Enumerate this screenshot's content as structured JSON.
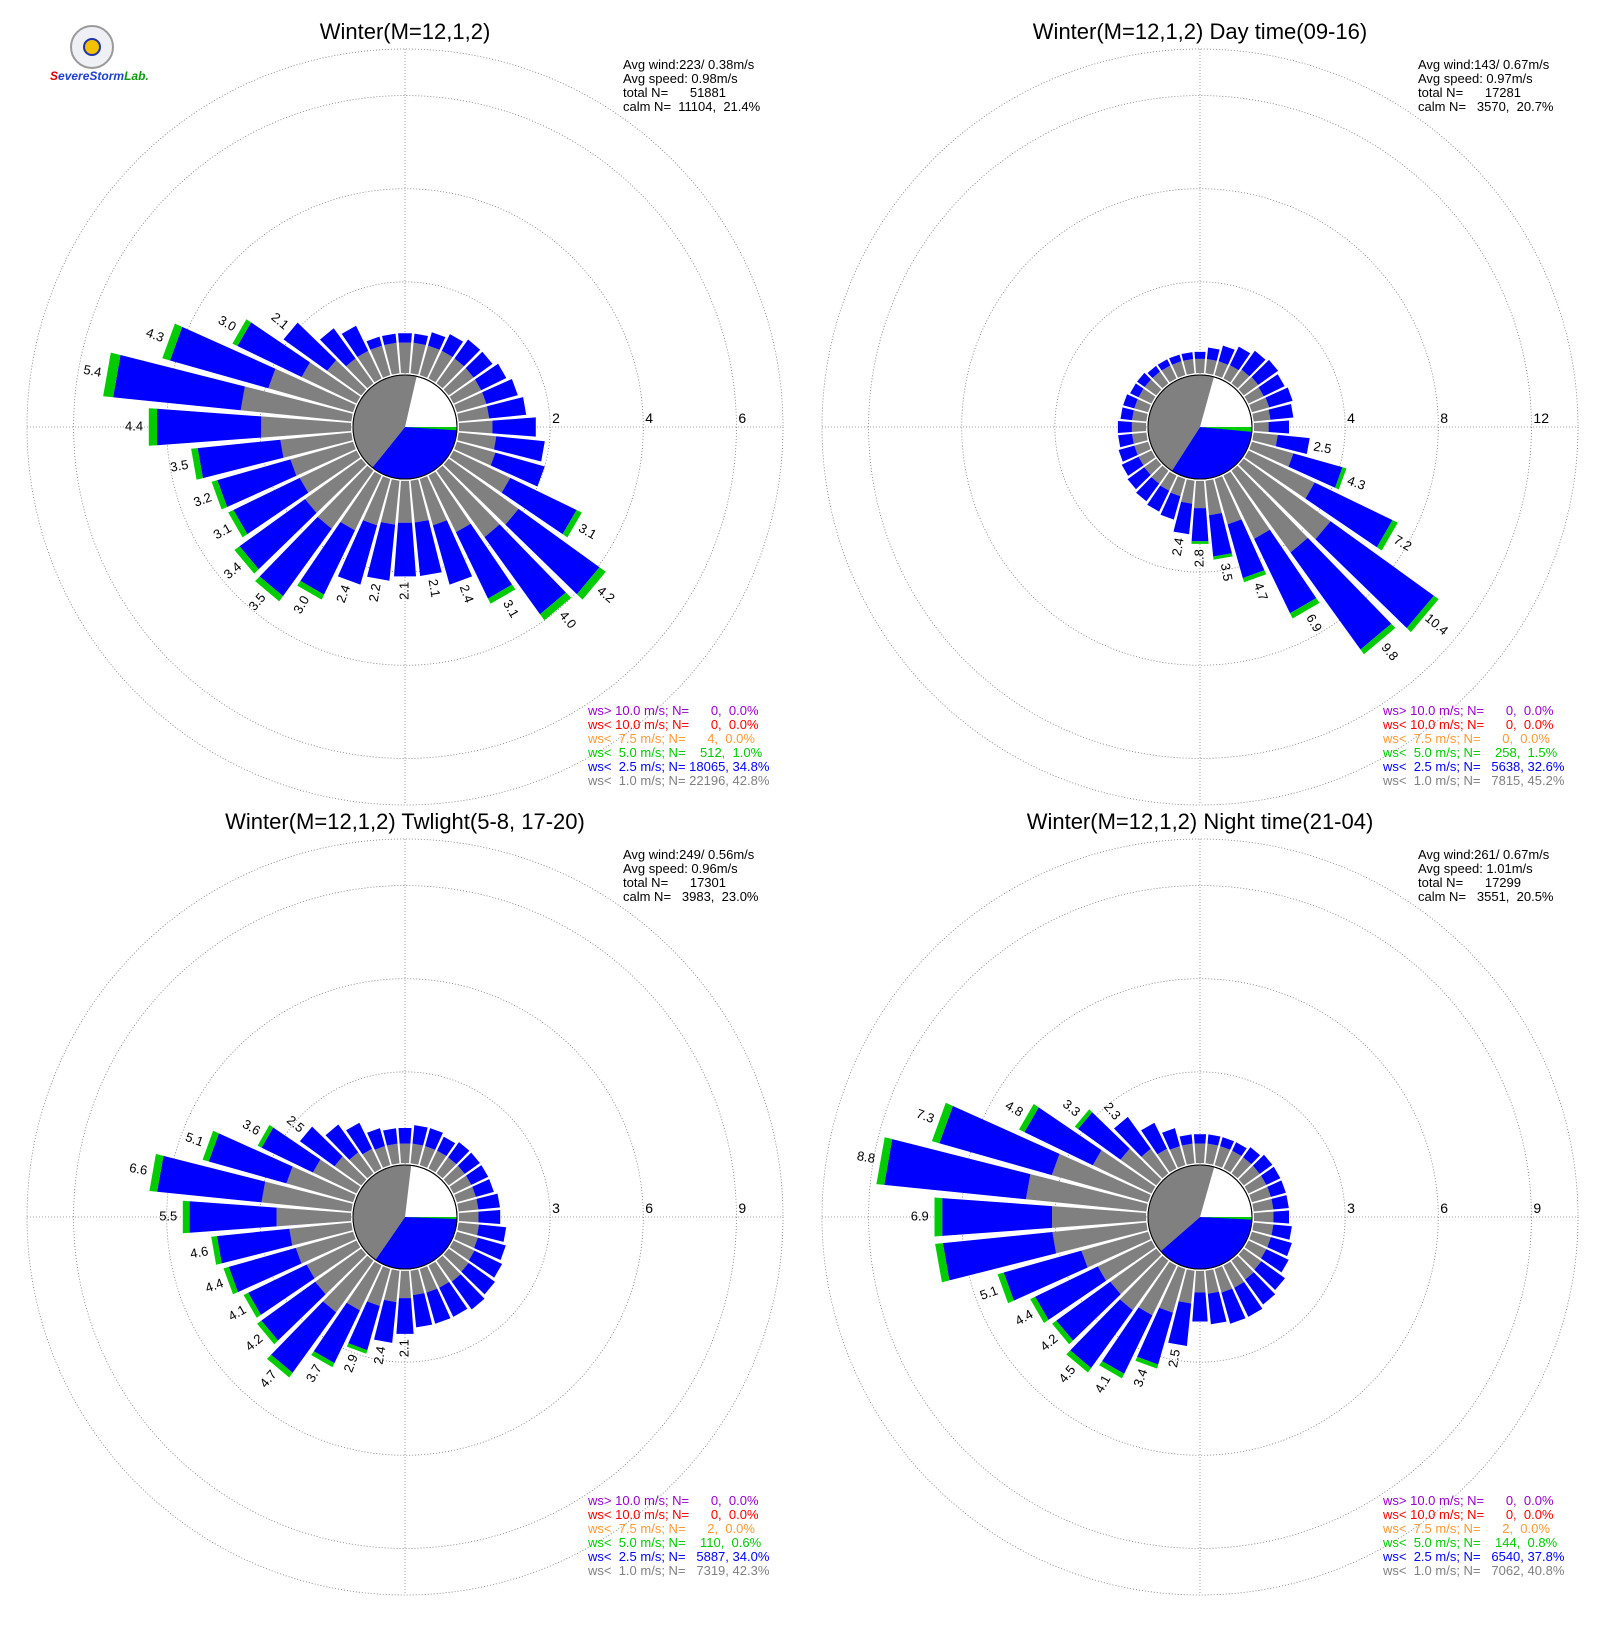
{
  "logo": {
    "text": "SevereStormLab."
  },
  "bin_colors": {
    "ws_lt_1": "#808080",
    "ws_lt_2_5": "#0000ff",
    "ws_lt_5": "#00cc00",
    "ws_lt_7_5": "#ff9933",
    "ws_lt_10": "#ff0000",
    "ws_gt_10": "#9900cc"
  },
  "chart_data": [
    {
      "type": "polar-bar",
      "title": "Winter(M=12,1,2)",
      "radial_ticks": [
        "2",
        "4",
        "6"
      ],
      "rmax": 7,
      "stats": [
        "Avg wind:223/ 0.38m/s",
        "Avg speed: 0.98m/s",
        "total N=      51881",
        "calm N=  11104,  21.4%"
      ],
      "legend": [
        {
          "text": "ws> 10.0 m/s; N=      0,  0.0%",
          "color": "#9900cc"
        },
        {
          "text": "ws< 10.0 m/s; N=      0,  0.0%",
          "color": "#ff0000"
        },
        {
          "text": "ws<  7.5 m/s; N=      4,  0.0%",
          "color": "#ff9933"
        },
        {
          "text": "ws<  5.0 m/s; N=    512,  1.0%",
          "color": "#00cc00"
        },
        {
          "text": "ws<  2.5 m/s; N= 18065, 34.8%",
          "color": "#0000ff"
        },
        {
          "text": "ws<  1.0 m/s; N= 22196, 42.8%",
          "color": "#808080"
        }
      ],
      "directions_deg": [
        0,
        10,
        20,
        30,
        40,
        50,
        60,
        70,
        80,
        90,
        100,
        110,
        120,
        130,
        140,
        150,
        160,
        170,
        180,
        190,
        200,
        210,
        220,
        230,
        240,
        250,
        260,
        270,
        280,
        290,
        300,
        310,
        320,
        330,
        340,
        350
      ],
      "totals": [
        0.9,
        0.9,
        1.0,
        1.1,
        1.2,
        1.2,
        1.3,
        1.4,
        1.5,
        1.7,
        1.9,
        2.0,
        3.1,
        4.2,
        4.0,
        3.1,
        2.4,
        2.1,
        2.1,
        2.2,
        2.4,
        3.0,
        3.5,
        3.4,
        3.1,
        3.2,
        3.5,
        4.4,
        5.4,
        4.3,
        3.0,
        2.1,
        1.5,
        1.3,
        0.9,
        0.9
      ],
      "bar_labels": [
        "",
        "",
        "",
        "",
        "",
        "",
        "",
        "",
        "",
        "",
        "",
        "",
        "3.1",
        "4.2",
        "4.0",
        "3.1",
        "2.4",
        "2.1",
        "2.1",
        "2.2",
        "2.4",
        "3.0",
        "3.5",
        "3.4",
        "3.1",
        "3.2",
        "3.5",
        "4.4",
        "5.4",
        "4.3",
        "3.0",
        "2.1",
        "",
        "",
        "",
        ""
      ],
      "calm_pie_fraction": 0.214
    },
    {
      "type": "polar-bar",
      "title": "Winter(M=12,1,2) Day time(09-16)",
      "radial_ticks": [
        "4",
        "8",
        "12"
      ],
      "rmax": 14,
      "stats": [
        "Avg wind:143/ 0.67m/s",
        "Avg speed: 0.97m/s",
        "total N=      17281",
        "calm N=   3570,  20.7%"
      ],
      "legend": [
        {
          "text": "ws> 10.0 m/s; N=      0,  0.0%",
          "color": "#9900cc"
        },
        {
          "text": "ws< 10.0 m/s; N=      0,  0.0%",
          "color": "#ff0000"
        },
        {
          "text": "ws<  7.5 m/s; N=      0,  0.0%",
          "color": "#ff9933"
        },
        {
          "text": "ws<  5.0 m/s; N=    258,  1.5%",
          "color": "#00cc00"
        },
        {
          "text": "ws<  2.5 m/s; N=   5638, 32.6%",
          "color": "#0000ff"
        },
        {
          "text": "ws<  1.0 m/s; N=   7815, 45.2%",
          "color": "#808080"
        }
      ],
      "directions_deg": [
        0,
        10,
        20,
        30,
        40,
        50,
        60,
        70,
        80,
        90,
        100,
        110,
        120,
        130,
        140,
        150,
        160,
        170,
        180,
        190,
        200,
        210,
        220,
        230,
        240,
        250,
        260,
        270,
        280,
        290,
        300,
        310,
        320,
        330,
        340,
        350
      ],
      "totals": [
        1.0,
        1.2,
        1.4,
        1.6,
        1.8,
        1.9,
        1.8,
        1.9,
        1.8,
        1.6,
        2.5,
        4.3,
        7.2,
        10.4,
        9.8,
        6.9,
        4.7,
        3.5,
        2.8,
        2.4,
        1.9,
        1.8,
        1.7,
        1.6,
        1.5,
        1.4,
        1.3,
        1.3,
        1.2,
        1.2,
        1.1,
        1.1,
        1.0,
        1.0,
        1.0,
        1.0
      ],
      "bar_labels": [
        "",
        "",
        "",
        "",
        "",
        "",
        "",
        "",
        "",
        "",
        "2.5",
        "4.3",
        "7.2",
        "10.4",
        "9.8",
        "6.9",
        "4.7",
        "3.5",
        "2.8",
        "2.4",
        "",
        "",
        "",
        "",
        "",
        "",
        "",
        "",
        "",
        "",
        "",
        "",
        "",
        "",
        "",
        ""
      ],
      "calm_pie_fraction": 0.207
    },
    {
      "type": "polar-bar",
      "title": "Winter(M=12,1,2) Twlight(5-8, 17-20)",
      "radial_ticks": [
        "3",
        "6",
        "9"
      ],
      "rmax": 10.5,
      "stats": [
        "Avg wind:249/ 0.56m/s",
        "Avg speed: 0.96m/s",
        "total N=      17301",
        "calm N=   3983,  23.0%"
      ],
      "legend": [
        {
          "text": "ws> 10.0 m/s; N=      0,  0.0%",
          "color": "#9900cc"
        },
        {
          "text": "ws< 10.0 m/s; N=      0,  0.0%",
          "color": "#ff0000"
        },
        {
          "text": "ws<  7.5 m/s; N=      2,  0.0%",
          "color": "#ff9933"
        },
        {
          "text": "ws<  5.0 m/s; N=    110,  0.6%",
          "color": "#00cc00"
        },
        {
          "text": "ws<  2.5 m/s; N=   5887, 34.0%",
          "color": "#0000ff"
        },
        {
          "text": "ws<  1.0 m/s; N=   7319, 42.3%",
          "color": "#808080"
        }
      ],
      "directions_deg": [
        0,
        10,
        20,
        30,
        40,
        50,
        60,
        70,
        80,
        90,
        100,
        110,
        120,
        130,
        140,
        150,
        160,
        170,
        180,
        190,
        200,
        210,
        220,
        230,
        240,
        250,
        260,
        270,
        280,
        290,
        300,
        310,
        320,
        330,
        340,
        350
      ],
      "totals": [
        1.2,
        1.3,
        1.3,
        1.2,
        1.3,
        1.3,
        1.3,
        1.3,
        1.4,
        1.4,
        1.6,
        1.7,
        1.8,
        1.9,
        2.0,
        1.9,
        1.9,
        1.9,
        2.1,
        2.4,
        2.9,
        3.7,
        4.7,
        4.2,
        4.1,
        4.4,
        4.6,
        5.5,
        6.6,
        5.1,
        3.6,
        2.5,
        2.0,
        1.7,
        1.3,
        1.2
      ],
      "bar_labels": [
        "",
        "",
        "",
        "",
        "",
        "",
        "",
        "",
        "",
        "",
        "",
        "",
        "",
        "",
        "",
        "",
        "",
        "",
        "2.1",
        "2.4",
        "2.9",
        "3.7",
        "4.7",
        "4.2",
        "4.1",
        "4.4",
        "4.6",
        "5.5",
        "6.6",
        "5.1",
        "3.6",
        "2.5",
        "",
        "",
        "",
        ""
      ],
      "calm_pie_fraction": 0.23
    },
    {
      "type": "polar-bar",
      "title": "Winter(M=12,1,2) Night time(21-04)",
      "radial_ticks": [
        "3",
        "6",
        "9"
      ],
      "rmax": 10.5,
      "stats": [
        "Avg wind:261/ 0.67m/s",
        "Avg speed: 1.01m/s",
        "total N=      17299",
        "calm N=   3551,  20.5%"
      ],
      "legend": [
        {
          "text": "ws> 10.0 m/s; N=      0,  0.0%",
          "color": "#9900cc"
        },
        {
          "text": "ws< 10.0 m/s; N=      0,  0.0%",
          "color": "#ff0000"
        },
        {
          "text": "ws<  7.5 m/s; N=      2,  0.0%",
          "color": "#ff9933"
        },
        {
          "text": "ws<  5.0 m/s; N=    144,  0.8%",
          "color": "#00cc00"
        },
        {
          "text": "ws<  2.5 m/s; N=   6540, 37.8%",
          "color": "#0000ff"
        },
        {
          "text": "ws<  1.0 m/s; N=   7062, 40.8%",
          "color": "#808080"
        }
      ],
      "directions_deg": [
        0,
        10,
        20,
        30,
        40,
        50,
        60,
        70,
        80,
        90,
        100,
        110,
        120,
        130,
        140,
        150,
        160,
        170,
        180,
        190,
        200,
        210,
        220,
        230,
        240,
        250,
        260,
        270,
        280,
        290,
        300,
        310,
        320,
        330,
        340,
        350
      ],
      "totals": [
        1.0,
        1.0,
        1.0,
        1.0,
        1.1,
        1.2,
        1.2,
        1.2,
        1.2,
        1.2,
        1.3,
        1.4,
        1.5,
        1.7,
        1.8,
        1.9,
        1.9,
        1.8,
        1.7,
        2.5,
        3.4,
        4.1,
        4.5,
        4.2,
        4.4,
        5.1,
        6.9,
        6.9,
        8.8,
        7.3,
        4.8,
        3.3,
        2.3,
        1.7,
        1.3,
        1.0
      ],
      "bar_labels": [
        "",
        "",
        "",
        "",
        "",
        "",
        "",
        "",
        "",
        "",
        "",
        "",
        "",
        "",
        "",
        "",
        "",
        "",
        "",
        "2.5",
        "3.4",
        "4.1",
        "4.5",
        "4.2",
        "4.4",
        "5.1",
        "",
        "6.9",
        "8.8",
        "7.3",
        "4.8",
        "3.3",
        "2.3",
        "",
        "",
        ""
      ],
      "calm_pie_fraction": 0.205
    }
  ]
}
